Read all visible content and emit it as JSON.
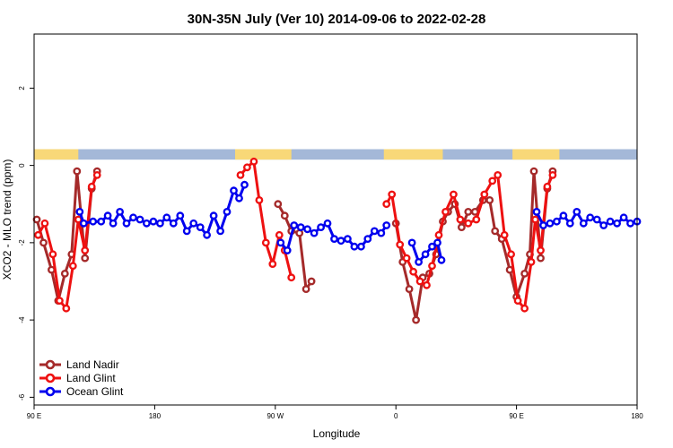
{
  "chart_data": {
    "type": "line",
    "title": "30N-35N July (Ver 10)   2014-09-06 to 2022-02-28",
    "xlabel": "Longitude",
    "ylabel": "XCO2 - MLO trend (ppm)",
    "xlim": [
      0,
      450
    ],
    "ylim": [
      -6.2,
      3.4
    ],
    "x_ticks": [
      {
        "value": 0,
        "label": "90 E"
      },
      {
        "value": 90,
        "label": "180"
      },
      {
        "value": 180,
        "label": "90 W"
      },
      {
        "value": 270,
        "label": "0"
      },
      {
        "value": 360,
        "label": "90 E"
      },
      {
        "value": 450,
        "label": "180"
      }
    ],
    "y_ticks": [
      {
        "value": 2,
        "label": "2"
      },
      {
        "value": 0,
        "label": "0"
      },
      {
        "value": -2,
        "label": "-2"
      },
      {
        "value": -4,
        "label": "-4"
      },
      {
        "value": -6,
        "label": "-6"
      }
    ],
    "band": {
      "y_min": 0.15,
      "y_max": 0.42,
      "ocean_color": "#a4b8d8",
      "land_color": "#f8d878",
      "land_segments": [
        [
          0,
          33
        ],
        [
          150,
          192
        ],
        [
          261,
          305
        ],
        [
          357,
          392
        ]
      ]
    },
    "legend_position": "bottom-left",
    "series": [
      {
        "name": "Land Nadir",
        "color": "#a52a2a",
        "segments": [
          [
            [
              2,
              -1.4
            ],
            [
              7,
              -2
            ],
            [
              13,
              -2.7
            ],
            [
              18,
              -3.5
            ],
            [
              23,
              -2.8
            ],
            [
              28,
              -2.3
            ],
            [
              32,
              -0.15
            ],
            [
              38,
              -2.4
            ],
            [
              43,
              -0.6
            ],
            [
              47,
              -0.15
            ]
          ],
          [
            [
              182,
              -1.0
            ],
            [
              187,
              -1.3
            ],
            [
              192,
              -1.7
            ],
            [
              198,
              -1.75
            ],
            [
              203,
              -3.2
            ],
            [
              207,
              -3.0
            ]
          ],
          [
            [
              270,
              -1.5
            ],
            [
              275,
              -2.5
            ],
            [
              280,
              -3.2
            ],
            [
              285,
              -4.0
            ],
            [
              290,
              -2.9
            ],
            [
              295,
              -2.8
            ],
            [
              300,
              -2.3
            ],
            [
              305,
              -1.45
            ],
            [
              309,
              -1.2
            ],
            [
              314,
              -1.0
            ],
            [
              319,
              -1.6
            ],
            [
              324,
              -1.2
            ],
            [
              329,
              -1.2
            ],
            [
              335,
              -0.9
            ],
            [
              340,
              -0.9
            ],
            [
              344,
              -1.7
            ],
            [
              349,
              -1.9
            ],
            [
              355,
              -2.7
            ],
            [
              360,
              -3.4
            ],
            [
              366,
              -2.8
            ],
            [
              370,
              -2.3
            ],
            [
              373,
              -0.15
            ],
            [
              378,
              -2.4
            ],
            [
              383,
              -0.6
            ],
            [
              387,
              -0.15
            ]
          ]
        ]
      },
      {
        "name": "Land Glint",
        "color": "#ee1111",
        "segments": [
          [
            [
              3,
              -1.8
            ],
            [
              8,
              -1.5
            ],
            [
              14,
              -2.3
            ],
            [
              19,
              -3.5
            ],
            [
              24,
              -3.7
            ],
            [
              29,
              -2.6
            ],
            [
              33,
              -1.4
            ],
            [
              38,
              -2.2
            ],
            [
              43,
              -0.55
            ],
            [
              47,
              -0.25
            ]
          ],
          [
            [
              154,
              -0.25
            ],
            [
              159,
              -0.05
            ],
            [
              164,
              0.1
            ],
            [
              168,
              -0.9
            ],
            [
              173,
              -2.0
            ],
            [
              178,
              -2.55
            ],
            [
              183,
              -1.8
            ],
            [
              187,
              -2.2
            ],
            [
              192,
              -2.9
            ]
          ],
          [
            [
              263,
              -1.0
            ],
            [
              267,
              -0.75
            ],
            [
              273,
              -2.05
            ],
            [
              278,
              -2.4
            ],
            [
              283,
              -2.75
            ],
            [
              288,
              -3.0
            ],
            [
              293,
              -3.1
            ],
            [
              297,
              -2.6
            ],
            [
              302,
              -1.8
            ],
            [
              307,
              -1.2
            ],
            [
              313,
              -0.75
            ],
            [
              318,
              -1.4
            ],
            [
              324,
              -1.5
            ],
            [
              330,
              -1.4
            ],
            [
              336,
              -0.75
            ],
            [
              342,
              -0.4
            ],
            [
              346,
              -0.25
            ],
            [
              351,
              -1.8
            ],
            [
              356,
              -2.3
            ],
            [
              361,
              -3.5
            ],
            [
              366,
              -3.7
            ],
            [
              371,
              -2.5
            ],
            [
              374,
              -1.4
            ],
            [
              378,
              -2.2
            ],
            [
              383,
              -0.55
            ],
            [
              387,
              -0.25
            ]
          ]
        ]
      },
      {
        "name": "Ocean Glint",
        "color": "#0000ee",
        "segments": [
          [
            [
              34,
              -1.2
            ],
            [
              37,
              -1.5
            ],
            [
              44,
              -1.45
            ],
            [
              50,
              -1.45
            ],
            [
              55,
              -1.3
            ],
            [
              59,
              -1.5
            ],
            [
              64,
              -1.2
            ],
            [
              69,
              -1.5
            ],
            [
              74,
              -1.35
            ],
            [
              79,
              -1.4
            ],
            [
              84,
              -1.5
            ],
            [
              89,
              -1.45
            ],
            [
              94,
              -1.5
            ],
            [
              99,
              -1.35
            ],
            [
              104,
              -1.5
            ],
            [
              109,
              -1.3
            ],
            [
              114,
              -1.7
            ],
            [
              119,
              -1.5
            ],
            [
              124,
              -1.6
            ],
            [
              129,
              -1.8
            ],
            [
              134,
              -1.3
            ],
            [
              139,
              -1.7
            ],
            [
              144,
              -1.2
            ],
            [
              149,
              -0.65
            ],
            [
              153,
              -0.85
            ],
            [
              157,
              -0.5
            ]
          ],
          [
            [
              184,
              -2.0
            ],
            [
              189,
              -2.2
            ],
            [
              194,
              -1.55
            ],
            [
              199,
              -1.6
            ],
            [
              204,
              -1.65
            ],
            [
              209,
              -1.75
            ],
            [
              214,
              -1.6
            ],
            [
              219,
              -1.5
            ],
            [
              224,
              -1.9
            ],
            [
              229,
              -1.95
            ],
            [
              234,
              -1.9
            ],
            [
              239,
              -2.1
            ],
            [
              244,
              -2.1
            ],
            [
              249,
              -1.9
            ],
            [
              254,
              -1.7
            ],
            [
              259,
              -1.75
            ],
            [
              263,
              -1.55
            ]
          ],
          [
            [
              282,
              -2.0
            ],
            [
              287,
              -2.5
            ],
            [
              292,
              -2.3
            ],
            [
              297,
              -2.1
            ],
            [
              301,
              -2.0
            ],
            [
              304,
              -2.45
            ]
          ],
          [
            [
              375,
              -1.2
            ],
            [
              380,
              -1.55
            ],
            [
              385,
              -1.5
            ],
            [
              390,
              -1.45
            ],
            [
              395,
              -1.3
            ],
            [
              400,
              -1.5
            ],
            [
              405,
              -1.2
            ],
            [
              410,
              -1.5
            ],
            [
              415,
              -1.35
            ],
            [
              420,
              -1.4
            ],
            [
              425,
              -1.55
            ],
            [
              430,
              -1.45
            ],
            [
              435,
              -1.5
            ],
            [
              440,
              -1.35
            ],
            [
              445,
              -1.5
            ],
            [
              450,
              -1.45
            ]
          ]
        ]
      }
    ]
  }
}
